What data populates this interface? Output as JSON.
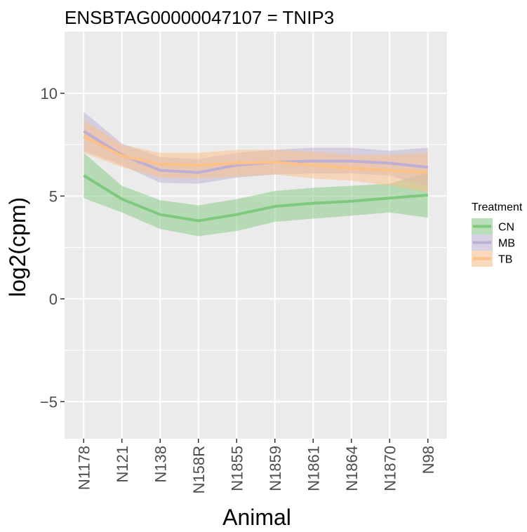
{
  "chart_data": {
    "type": "line",
    "title": "ENSBTAG00000047107  =  TNIP3",
    "xlabel": "Animal",
    "ylabel": "log2(cpm)",
    "categories": [
      "N1178",
      "N121",
      "N138",
      "N158R",
      "N1855",
      "N1859",
      "N1861",
      "N1864",
      "N1870",
      "N98"
    ],
    "ylim": [
      -6.8,
      13
    ],
    "yticks": [
      -5,
      0,
      5,
      10
    ],
    "grid": true,
    "legend": {
      "title": "Treatment",
      "position": "right",
      "entries": [
        "CN",
        "MB",
        "TB"
      ]
    },
    "series": [
      {
        "name": "CN",
        "color": "#7fc97f",
        "values": [
          6.0,
          4.85,
          4.1,
          3.8,
          4.1,
          4.5,
          4.65,
          4.75,
          4.9,
          5.05
        ],
        "lower": [
          4.9,
          4.2,
          3.4,
          3.05,
          3.3,
          3.75,
          3.9,
          4.05,
          4.2,
          3.95
        ],
        "upper": [
          7.1,
          5.5,
          4.8,
          4.55,
          4.85,
          5.25,
          5.4,
          5.5,
          5.6,
          6.15
        ]
      },
      {
        "name": "MB",
        "color": "#beaed4",
        "values": [
          8.15,
          7.0,
          6.25,
          6.15,
          6.5,
          6.65,
          6.7,
          6.7,
          6.6,
          6.4
        ],
        "lower": [
          7.2,
          6.5,
          5.65,
          5.6,
          5.9,
          6.05,
          6.1,
          6.1,
          6.0,
          5.45
        ],
        "upper": [
          9.1,
          7.55,
          6.9,
          6.8,
          7.1,
          7.25,
          7.35,
          7.35,
          7.2,
          7.35
        ]
      },
      {
        "name": "TB",
        "color": "#fdc086",
        "values": [
          7.9,
          6.95,
          6.55,
          6.5,
          6.6,
          6.65,
          6.5,
          6.35,
          6.25,
          6.15
        ],
        "lower": [
          7.1,
          6.4,
          5.9,
          5.85,
          5.95,
          6.05,
          5.85,
          5.75,
          5.5,
          5.2
        ],
        "upper": [
          8.7,
          7.5,
          7.1,
          7.1,
          7.25,
          7.25,
          7.15,
          7.0,
          7.0,
          7.1
        ]
      }
    ]
  }
}
